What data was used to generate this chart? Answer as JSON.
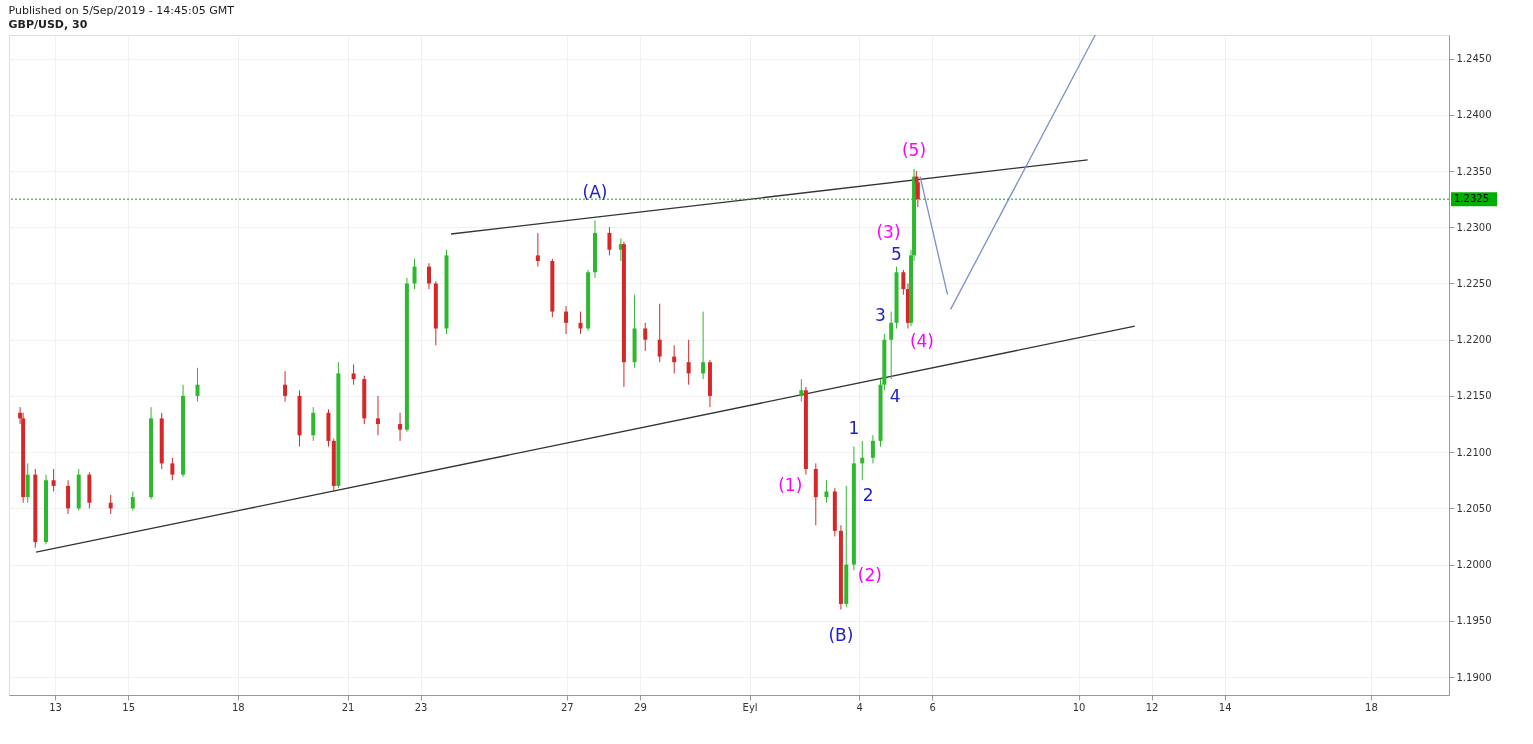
{
  "chart_data": {
    "type": "candlestick",
    "title": "Published on 5/Sep/2019 - 14:45:05 GMT",
    "subtitle": "GBP/USD, 30",
    "x": [
      "2019-08-12T01:00",
      "2019-08-12T03:00",
      "2019-08-12T06:00",
      "2019-08-12T11:00",
      "2019-08-12T18:00",
      "2019-08-12T23:00",
      "2019-08-13T08:30",
      "2019-08-13T15:30",
      "2019-08-13T22:30",
      "2019-08-14T12:30",
      "2019-08-15T03:00",
      "2019-08-15T15:00",
      "2019-08-15T22:00",
      "2019-08-16T05:00",
      "2019-08-16T12:00",
      "2019-08-16T21:30",
      "2019-08-19T07:00",
      "2019-08-19T16:30",
      "2019-08-20T01:30",
      "2019-08-20T11:30",
      "2019-08-20T15:00",
      "2019-08-20T18:00",
      "2019-08-21T04:00",
      "2019-08-21T11:00",
      "2019-08-21T20:00",
      "2019-08-22T10:30",
      "2019-08-22T15:00",
      "2019-08-22T20:00",
      "2019-08-23T05:30",
      "2019-08-23T10:00",
      "2019-08-23T17:00",
      "2019-08-26T05:00",
      "2019-08-26T14:30",
      "2019-08-26T23:30",
      "2019-08-27T09:00",
      "2019-08-27T14:00",
      "2019-08-27T18:30",
      "2019-08-28T04:00",
      "2019-08-28T11:30",
      "2019-08-28T13:30",
      "2019-08-28T20:30",
      "2019-08-29T03:30",
      "2019-08-29T13:00",
      "2019-08-29T22:30",
      "2019-08-30T08:00",
      "2019-08-30T17:30",
      "2019-08-30T22:00",
      "2019-09-02T10:00",
      "2019-09-02T13:00",
      "2019-09-02T19:30",
      "2019-09-03T02:30",
      "2019-09-03T08:00",
      "2019-09-03T12:00",
      "2019-09-03T15:30",
      "2019-09-03T20:30",
      "2019-09-04T02:00",
      "2019-09-04T09:00",
      "2019-09-04T14:00",
      "2019-09-04T16:30",
      "2019-09-04T21:00",
      "2019-09-05T00:30",
      "2019-09-05T05:00",
      "2019-09-05T08:00",
      "2019-09-05T10:00",
      "2019-09-05T12:00",
      "2019-09-05T13:30",
      "2019-09-05T14:30"
    ],
    "ohlc": [
      [
        1.2135,
        1.214,
        1.2125,
        1.213
      ],
      [
        1.213,
        1.2135,
        1.2055,
        1.206
      ],
      [
        1.206,
        1.209,
        1.2055,
        1.208
      ],
      [
        1.208,
        1.2085,
        1.2015,
        1.202
      ],
      [
        1.202,
        1.208,
        1.2018,
        1.2075
      ],
      [
        1.2075,
        1.2085,
        1.2065,
        1.207
      ],
      [
        1.207,
        1.2075,
        1.2045,
        1.205
      ],
      [
        1.205,
        1.2085,
        1.2048,
        1.208
      ],
      [
        1.208,
        1.2082,
        1.205,
        1.2055
      ],
      [
        1.2055,
        1.2062,
        1.2045,
        1.205
      ],
      [
        1.205,
        1.2065,
        1.2048,
        1.206
      ],
      [
        1.206,
        1.214,
        1.2058,
        1.213
      ],
      [
        1.213,
        1.2135,
        1.2085,
        1.209
      ],
      [
        1.209,
        1.2095,
        1.2075,
        1.208
      ],
      [
        1.208,
        1.216,
        1.2078,
        1.215
      ],
      [
        1.215,
        1.2175,
        1.2145,
        1.216
      ],
      [
        1.216,
        1.2172,
        1.2145,
        1.215
      ],
      [
        1.215,
        1.2155,
        1.2105,
        1.2115
      ],
      [
        1.2115,
        1.214,
        1.211,
        1.2135
      ],
      [
        1.2135,
        1.2138,
        1.2105,
        1.211
      ],
      [
        1.211,
        1.2112,
        1.2065,
        1.207
      ],
      [
        1.207,
        1.218,
        1.2068,
        1.217
      ],
      [
        1.217,
        1.2178,
        1.216,
        1.2165
      ],
      [
        1.2165,
        1.2168,
        1.2125,
        1.213
      ],
      [
        1.213,
        1.215,
        1.2115,
        1.2125
      ],
      [
        1.2125,
        1.2135,
        1.211,
        1.212
      ],
      [
        1.212,
        1.2255,
        1.2118,
        1.225
      ],
      [
        1.225,
        1.2272,
        1.2245,
        1.2265
      ],
      [
        1.2265,
        1.2268,
        1.2245,
        1.225
      ],
      [
        1.225,
        1.2252,
        1.2195,
        1.221
      ],
      [
        1.221,
        1.228,
        1.2205,
        1.2275
      ],
      [
        1.2275,
        1.2295,
        1.2265,
        1.227
      ],
      [
        1.227,
        1.2272,
        1.222,
        1.2225
      ],
      [
        1.2225,
        1.223,
        1.2205,
        1.2215
      ],
      [
        1.2215,
        1.2225,
        1.2205,
        1.221
      ],
      [
        1.221,
        1.2262,
        1.2208,
        1.226
      ],
      [
        1.226,
        1.2306,
        1.2255,
        1.2295
      ],
      [
        1.2295,
        1.23,
        1.2275,
        1.228
      ],
      [
        1.228,
        1.229,
        1.227,
        1.2285
      ],
      [
        1.2285,
        1.2287,
        1.2158,
        1.218
      ],
      [
        1.218,
        1.224,
        1.2175,
        1.221
      ],
      [
        1.221,
        1.2215,
        1.219,
        1.22
      ],
      [
        1.22,
        1.2232,
        1.218,
        1.2185
      ],
      [
        1.2185,
        1.2195,
        1.217,
        1.218
      ],
      [
        1.218,
        1.22,
        1.216,
        1.217
      ],
      [
        1.217,
        1.2225,
        1.2165,
        1.218
      ],
      [
        1.218,
        1.2182,
        1.214,
        1.215
      ],
      [
        1.215,
        1.2165,
        1.2145,
        1.2155
      ],
      [
        1.2155,
        1.2158,
        1.208,
        1.2085
      ],
      [
        1.2085,
        1.209,
        1.2035,
        1.206
      ],
      [
        1.206,
        1.2075,
        1.2055,
        1.2065
      ],
      [
        1.2065,
        1.2068,
        1.2025,
        1.203
      ],
      [
        1.203,
        1.2035,
        1.196,
        1.1965
      ],
      [
        1.1965,
        1.207,
        1.1962,
        1.2
      ],
      [
        1.2,
        1.2105,
        1.1995,
        1.209
      ],
      [
        1.209,
        1.211,
        1.2075,
        1.2095
      ],
      [
        1.2095,
        1.2115,
        1.209,
        1.211
      ],
      [
        1.211,
        1.2165,
        1.2105,
        1.216
      ],
      [
        1.216,
        1.2205,
        1.2155,
        1.22
      ],
      [
        1.22,
        1.2225,
        1.2165,
        1.2215
      ],
      [
        1.2215,
        1.2265,
        1.221,
        1.226
      ],
      [
        1.226,
        1.2262,
        1.224,
        1.2245
      ],
      [
        1.2245,
        1.225,
        1.221,
        1.2215
      ],
      [
        1.2215,
        1.228,
        1.2212,
        1.2275
      ],
      [
        1.2275,
        1.2352,
        1.227,
        1.2345
      ],
      [
        1.2345,
        1.235,
        1.233,
        1.234
      ],
      [
        1.234,
        1.2345,
        1.2318,
        1.2325
      ]
    ],
    "colors": [
      "#d62828",
      "#d62828",
      "#2eb82e",
      "#d62828",
      "#2eb82e",
      "#d62828",
      "#d62828",
      "#2eb82e",
      "#d62828",
      "#d62828",
      "#2eb82e",
      "#2eb82e",
      "#d62828",
      "#d62828",
      "#2eb82e",
      "#2eb82e",
      "#d62828",
      "#d62828",
      "#2eb82e",
      "#d62828",
      "#d62828",
      "#2eb82e",
      "#d62828",
      "#d62828",
      "#d62828",
      "#d62828",
      "#2eb82e",
      "#2eb82e",
      "#d62828",
      "#d62828",
      "#2eb82e",
      "#d62828",
      "#d62828",
      "#d62828",
      "#d62828",
      "#2eb82e",
      "#2eb82e",
      "#d62828",
      "#2eb82e",
      "#d62828",
      "#2eb82e",
      "#d62828",
      "#d62828",
      "#d62828",
      "#d62828",
      "#2eb82e",
      "#d62828",
      "#2eb82e",
      "#d62828",
      "#d62828",
      "#2eb82e",
      "#d62828",
      "#d62828",
      "#2eb82e",
      "#2eb82e",
      "#2eb82e",
      "#2eb82e",
      "#2eb82e",
      "#2eb82e",
      "#2eb82e",
      "#2eb82e",
      "#d62828",
      "#d62828",
      "#2eb82e",
      "#2eb82e",
      "#d62828",
      "#d62828"
    ],
    "series": [
      {
        "type": "line",
        "color": "#333333",
        "x": [
          "2019-08-23T20:00",
          "2019-09-10T06:00"
        ],
        "values": [
          1.2294,
          1.236
        ]
      },
      {
        "type": "line",
        "color": "#333333",
        "x": [
          "2019-08-12T11:30",
          "2019-09-11T13:00"
        ],
        "values": [
          1.2011,
          1.2212
        ]
      },
      {
        "type": "line",
        "color": "#7b8fc9",
        "x": [
          "2019-09-05T16:00",
          "2019-09-06T10:00"
        ],
        "values": [
          1.2345,
          1.224
        ]
      },
      {
        "type": "line",
        "color": "#7b8fc9",
        "x": [
          "2019-09-06T12:00",
          "2019-09-10T11:00"
        ],
        "values": [
          1.2227,
          1.2471
        ]
      }
    ],
    "ref_lines": [
      {
        "axis": "y",
        "value": 1.2325,
        "label": "1.2325",
        "color": "#00b000",
        "line_style": "dotted"
      }
    ],
    "annotations": [
      {
        "text": "(A)",
        "x": "2019-08-27T18:30",
        "y": 1.2306
      },
      {
        "text": "(B)",
        "x": "2019-09-03T12:00",
        "y": 1.196
      },
      {
        "text": "(1)",
        "x": "2019-09-03T15:30",
        "y": 1.207
      },
      {
        "text": "(2)",
        "x": "2019-09-03T20:30",
        "y": 1.1995
      },
      {
        "text": "(3)",
        "x": "2019-09-05T00:30",
        "y": 1.2265
      },
      {
        "text": "(4)",
        "x": "2019-09-05T08:00",
        "y": 1.221
      },
      {
        "text": "(5)",
        "x": "2019-09-05T12:00",
        "y": 1.2352
      },
      {
        "text": "1",
        "x": "2019-09-03T20:30",
        "y": 1.2105
      },
      {
        "text": "2",
        "x": "2019-09-04T02:00",
        "y": 1.2075
      },
      {
        "text": "3",
        "x": "2019-09-04T16:30",
        "y": 1.2205
      },
      {
        "text": "4",
        "x": "2019-09-04T21:00",
        "y": 1.2165
      },
      {
        "text": "5",
        "x": "2019-09-05T00:30",
        "y": 1.2265
      }
    ],
    "xlim": [
      "2019-08-11T21:00",
      "2019-09-20T00:00"
    ],
    "xticks": [
      {
        "value": "2019-08-13",
        "label": "13"
      },
      {
        "value": "2019-08-15",
        "label": "15"
      },
      {
        "value": "2019-08-18",
        "label": "18"
      },
      {
        "value": "2019-08-21",
        "label": "21"
      },
      {
        "value": "2019-08-23",
        "label": "23"
      },
      {
        "value": "2019-08-27",
        "label": "27"
      },
      {
        "value": "2019-08-29",
        "label": "29"
      },
      {
        "value": "2019-09-01",
        "label": "Eyl"
      },
      {
        "value": "2019-09-04",
        "label": "4"
      },
      {
        "value": "2019-09-06",
        "label": "6"
      },
      {
        "value": "2019-09-10",
        "label": "10"
      },
      {
        "value": "2019-09-12",
        "label": "12"
      },
      {
        "value": "2019-09-14",
        "label": "14"
      },
      {
        "value": "2019-09-18",
        "label": "18"
      }
    ],
    "ylim": [
      1.1884,
      1.2471
    ],
    "yticks": [
      {
        "value": 1.19,
        "label": "1.1900"
      },
      {
        "value": 1.195,
        "label": "1.1950"
      },
      {
        "value": 1.2,
        "label": "1.2000"
      },
      {
        "value": 1.205,
        "label": "1.2050"
      },
      {
        "value": 1.21,
        "label": "1.2100"
      },
      {
        "value": 1.215,
        "label": "1.2150"
      },
      {
        "value": 1.22,
        "label": "1.2200"
      },
      {
        "value": 1.225,
        "label": "1.2250"
      },
      {
        "value": 1.23,
        "label": "1.2300"
      },
      {
        "value": 1.235,
        "label": "1.2350"
      },
      {
        "value": 1.24,
        "label": "1.2400"
      },
      {
        "value": 1.245,
        "label": "1.2450"
      }
    ],
    "grid": true
  }
}
